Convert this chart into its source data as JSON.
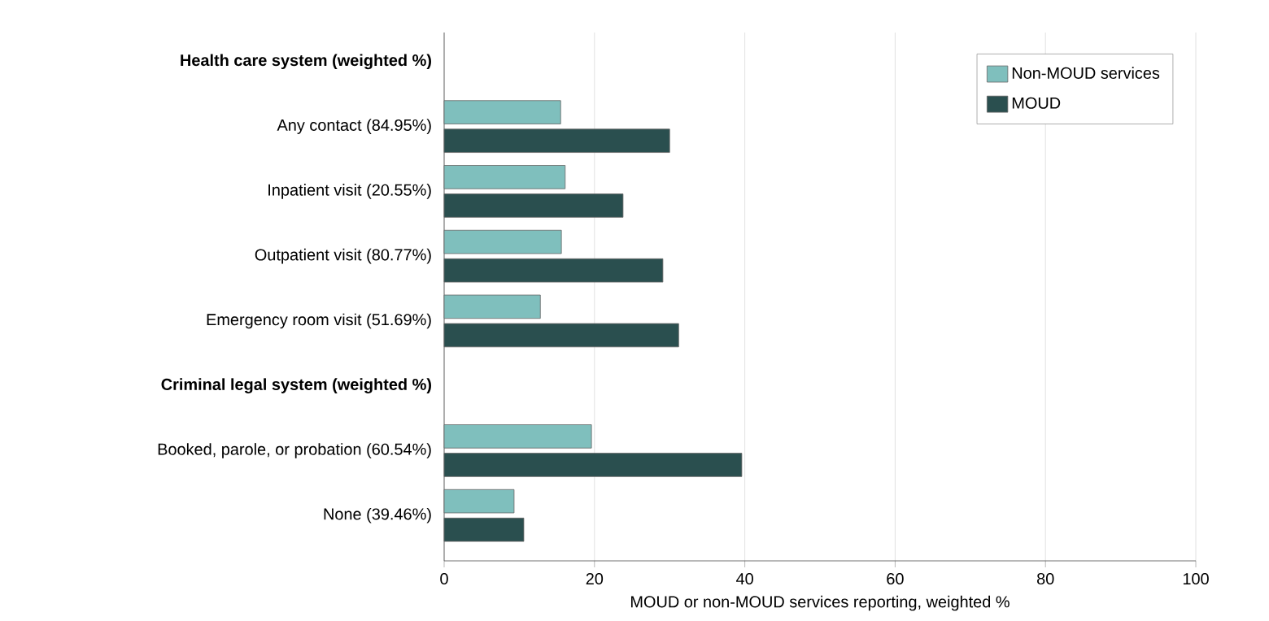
{
  "chart_data": {
    "type": "bar",
    "orientation": "horizontal",
    "xlabel": "MOUD or non-MOUD services reporting, weighted %",
    "categories": [
      "Health care system (weighted %)",
      "Any contact (84.95%)",
      "Inpatient visit (20.55%)",
      "Outpatient visit (80.77%)",
      "Emergency room visit (51.69%)",
      "Criminal legal system (weighted %)",
      "Booked, parole, or probation (60.54%)",
      "None (39.46%)"
    ],
    "series": [
      {
        "name": "Non-MOUD services",
        "color": "#7fbfbd",
        "values": [
          null,
          15.5,
          16.1,
          15.6,
          12.8,
          null,
          19.6,
          9.3
        ]
      },
      {
        "name": "MOUD",
        "color": "#2a4f4f",
        "values": [
          null,
          30.0,
          23.8,
          29.1,
          31.2,
          null,
          39.6,
          10.6
        ]
      }
    ],
    "xlim": [
      0,
      100
    ],
    "xticks": [
      0,
      20,
      40,
      60,
      80,
      100
    ],
    "grid": "x",
    "legend": "top right"
  }
}
